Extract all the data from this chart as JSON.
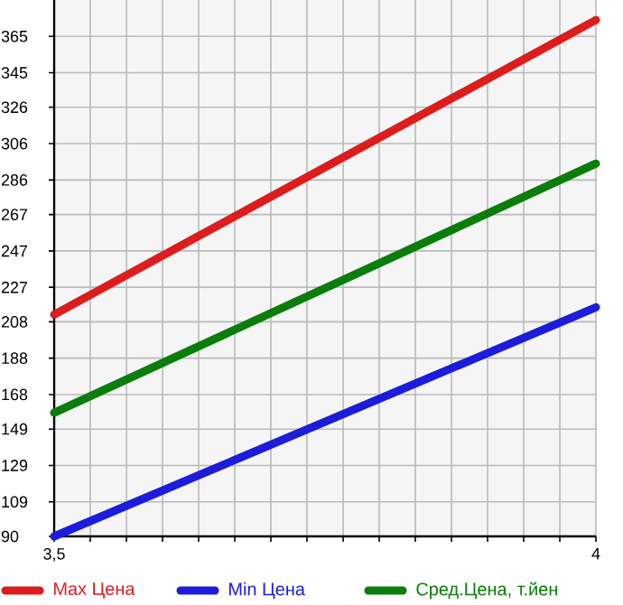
{
  "chart_data": {
    "type": "line",
    "x": [
      3.5,
      4
    ],
    "series": [
      {
        "name": "Max Цена",
        "color": "#dd1c1c",
        "values": [
          212,
          374
        ]
      },
      {
        "name": "Min Цена",
        "color": "#1c1cdd",
        "values": [
          90,
          216
        ]
      },
      {
        "name": "Сред.Цена, т.йен",
        "color": "#0a7d0a",
        "values": [
          158,
          295
        ]
      }
    ],
    "xlim": [
      3.5,
      4
    ],
    "xticks": [
      {
        "value": 3.5,
        "label": "3,5"
      },
      {
        "value": 3.5333,
        "label": null
      },
      {
        "value": 3.5667,
        "label": null
      },
      {
        "value": 3.6,
        "label": null
      },
      {
        "value": 3.6333,
        "label": null
      },
      {
        "value": 3.6667,
        "label": null
      },
      {
        "value": 3.7,
        "label": null
      },
      {
        "value": 3.7333,
        "label": null
      },
      {
        "value": 3.7667,
        "label": null
      },
      {
        "value": 3.8,
        "label": null
      },
      {
        "value": 3.8333,
        "label": null
      },
      {
        "value": 3.8667,
        "label": null
      },
      {
        "value": 3.9,
        "label": null
      },
      {
        "value": 3.9333,
        "label": null
      },
      {
        "value": 3.9667,
        "label": null
      },
      {
        "value": 4,
        "label": "4"
      }
    ],
    "ylim": [
      90,
      385
    ],
    "yticks": [
      90,
      109,
      129,
      149,
      168,
      188,
      208,
      227,
      247,
      267,
      286,
      306,
      326,
      345,
      365
    ],
    "grid": true,
    "legend": "bottom",
    "marker": "none",
    "line_style": "solid"
  }
}
